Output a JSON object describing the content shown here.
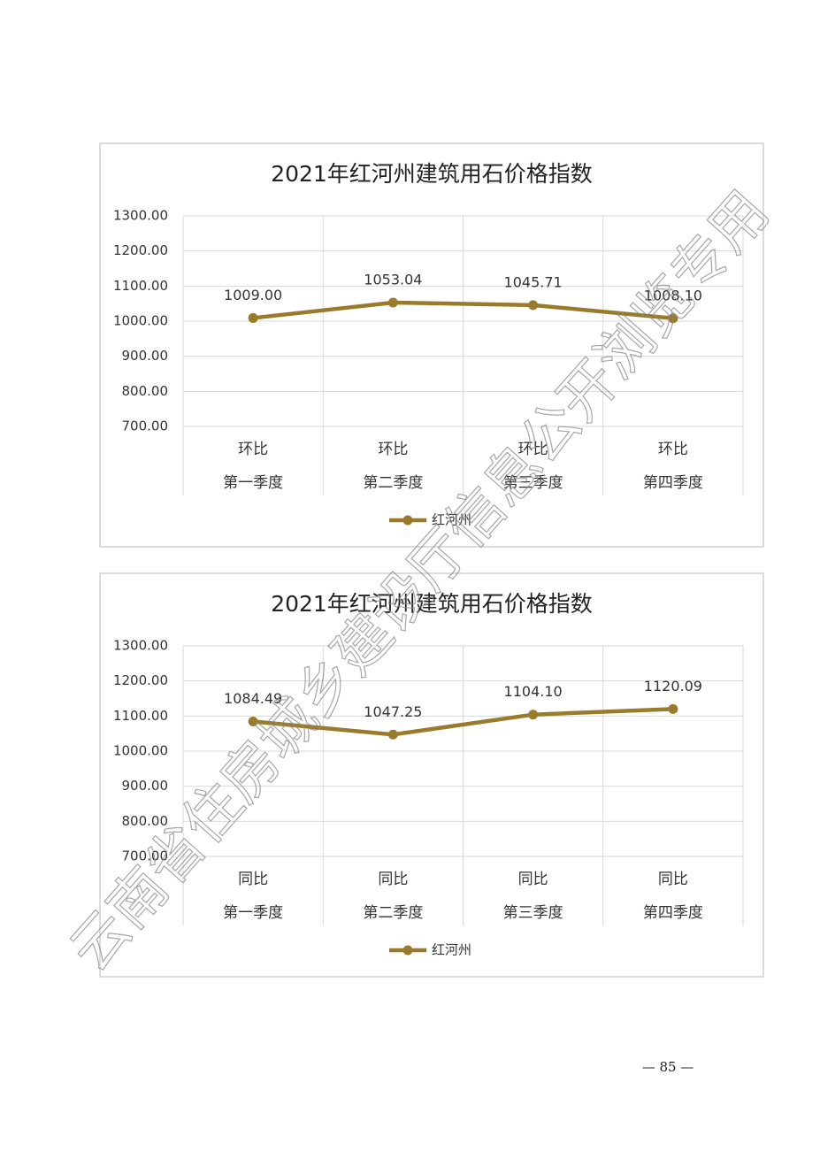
{
  "chart_data": [
    {
      "type": "line",
      "title": "2021年红河州建筑用石价格指数",
      "categories": [
        "第一季度",
        "第二季度",
        "第三季度",
        "第四季度"
      ],
      "subcategories": [
        "环比",
        "环比",
        "环比",
        "环比"
      ],
      "series": [
        {
          "name": "红河州",
          "color": "#9a7b2c",
          "values": [
            1009.0,
            1053.04,
            1045.71,
            1008.1
          ],
          "value_labels": [
            "1009.00",
            "1053.04",
            "1045.71",
            "1008.10"
          ]
        }
      ],
      "ylim": [
        700,
        1300
      ],
      "yticks": [
        {
          "value": 700,
          "label": "700.00"
        },
        {
          "value": 800,
          "label": "800.00"
        },
        {
          "value": 900,
          "label": "900.00"
        },
        {
          "value": 1000,
          "label": "1000.00"
        },
        {
          "value": 1100,
          "label": "1100.00"
        },
        {
          "value": 1200,
          "label": "1200.00"
        },
        {
          "value": 1300,
          "label": "1300.00"
        }
      ],
      "grid": true,
      "legend": "bottom"
    },
    {
      "type": "line",
      "title": "2021年红河州建筑用石价格指数",
      "categories": [
        "第一季度",
        "第二季度",
        "第三季度",
        "第四季度"
      ],
      "subcategories": [
        "同比",
        "同比",
        "同比",
        "同比"
      ],
      "series": [
        {
          "name": "红河州",
          "color": "#9a7b2c",
          "values": [
            1084.49,
            1047.25,
            1104.1,
            1120.09
          ],
          "value_labels": [
            "1084.49",
            "1047.25",
            "1104.10",
            "1120.09"
          ]
        }
      ],
      "ylim": [
        700,
        1300
      ],
      "yticks": [
        {
          "value": 700,
          "label": "700.00"
        },
        {
          "value": 800,
          "label": "800.00"
        },
        {
          "value": 900,
          "label": "900.00"
        },
        {
          "value": 1000,
          "label": "1000.00"
        },
        {
          "value": 1100,
          "label": "1100.00"
        },
        {
          "value": 1200,
          "label": "1200.00"
        },
        {
          "value": 1300,
          "label": "1300.00"
        }
      ],
      "grid": true,
      "legend": "bottom"
    }
  ],
  "page_number": "— 85 —",
  "watermark": "云南省住房城乡建设厅信息公开浏览专用"
}
